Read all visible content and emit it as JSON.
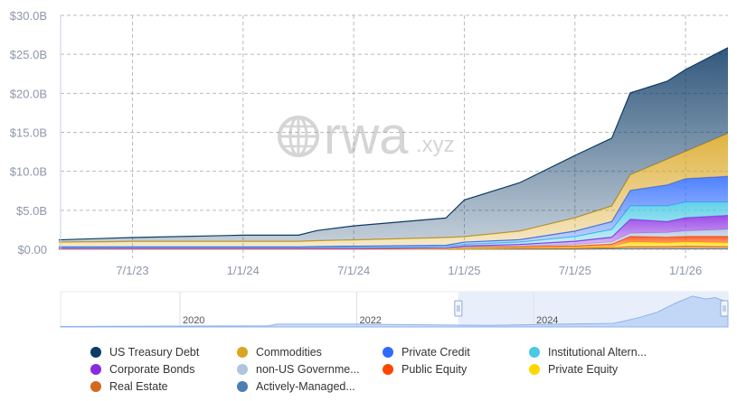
{
  "watermark": "rwa.xyz",
  "chart_data": {
    "type": "area",
    "stacked": true,
    "title": "",
    "xlabel": "",
    "ylabel": "",
    "ylim": [
      0,
      30
    ],
    "y_unit": "B USD",
    "yticks": [
      "$0.00",
      "$5.0B",
      "$10.0B",
      "$15.0B",
      "$20.0B",
      "$25.0B",
      "$30.0B"
    ],
    "ytick_values": [
      0,
      5,
      10,
      15,
      20,
      25,
      30
    ],
    "xticks": [
      "7/1/23",
      "1/1/24",
      "7/1/24",
      "1/1/25",
      "7/1/25",
      "1/1/26"
    ],
    "xtick_values": [
      0,
      6,
      12,
      18,
      24,
      30
    ],
    "x_unit": "months since 2023-07-01",
    "xlim": [
      -3.9,
      32.3
    ],
    "grid": true,
    "legend_placement": "bottom",
    "x": [
      -4,
      0,
      6,
      9,
      10,
      12,
      17,
      18,
      21,
      24,
      26,
      27,
      29,
      30,
      32.3
    ],
    "series": [
      {
        "name": "Actively-Managed...",
        "color": "#4a7fb0",
        "values": [
          0.01,
          0.01,
          0.01,
          0.01,
          0.01,
          0.01,
          0.01,
          0.02,
          0.03,
          0.03,
          0.05,
          0.05,
          0.05,
          0.05,
          0.05
        ]
      },
      {
        "name": "Real Estate",
        "color": "#d2691e",
        "values": [
          0.02,
          0.02,
          0.02,
          0.02,
          0.02,
          0.02,
          0.03,
          0.05,
          0.08,
          0.1,
          0.15,
          0.3,
          0.3,
          0.35,
          0.3
        ]
      },
      {
        "name": "Private Equity",
        "color": "#ffd700",
        "values": [
          0.01,
          0.01,
          0.01,
          0.01,
          0.01,
          0.01,
          0.02,
          0.05,
          0.07,
          0.1,
          0.15,
          0.6,
          0.5,
          0.55,
          0.5
        ]
      },
      {
        "name": "Public Equity",
        "color": "#ff4500",
        "values": [
          0.02,
          0.02,
          0.02,
          0.02,
          0.02,
          0.02,
          0.05,
          0.15,
          0.15,
          0.2,
          0.3,
          0.7,
          0.7,
          0.7,
          0.8
        ]
      },
      {
        "name": "non-US Governme...",
        "color": "#b0c4de",
        "values": [
          0.03,
          0.03,
          0.03,
          0.03,
          0.04,
          0.04,
          0.05,
          0.05,
          0.1,
          0.2,
          0.3,
          0.4,
          0.6,
          0.7,
          0.9
        ]
      },
      {
        "name": "Corporate Bonds",
        "color": "#8a2be2",
        "values": [
          0.02,
          0.02,
          0.02,
          0.02,
          0.02,
          0.02,
          0.05,
          0.1,
          0.2,
          0.4,
          0.6,
          1.8,
          1.4,
          1.7,
          1.8
        ]
      },
      {
        "name": "Institutional Altern...",
        "color": "#48cae4",
        "values": [
          0.15,
          0.15,
          0.15,
          0.15,
          0.18,
          0.18,
          0.2,
          0.2,
          0.3,
          0.6,
          1.0,
          1.7,
          2.0,
          2.0,
          1.7
        ]
      },
      {
        "name": "Private Credit",
        "color": "#2f6bff",
        "values": [
          0.05,
          0.05,
          0.05,
          0.05,
          0.05,
          0.1,
          0.1,
          0.3,
          0.3,
          0.7,
          1.0,
          2.0,
          2.7,
          3.0,
          3.3
        ]
      },
      {
        "name": "Commodities",
        "color": "#daa520",
        "values": [
          0.6,
          0.7,
          0.7,
          0.7,
          0.75,
          0.8,
          1.0,
          0.7,
          1.1,
          1.7,
          2.0,
          2.0,
          3.3,
          3.5,
          5.5
        ]
      },
      {
        "name": "US Treasury Debt",
        "color": "#0d3b66",
        "values": [
          0.3,
          0.5,
          0.8,
          0.8,
          1.3,
          1.8,
          2.5,
          4.7,
          6.2,
          8.0,
          8.7,
          10.5,
          10.0,
          10.5,
          11.0
        ]
      }
    ],
    "navigator": {
      "year_labels": [
        "2020",
        "2022",
        "2024"
      ],
      "year_values": [
        2020,
        2022,
        2024
      ],
      "range": [
        2018.65,
        2026.2
      ],
      "selected": [
        2023.15,
        2026.2
      ]
    }
  },
  "legend": [
    {
      "label": "US Treasury Debt",
      "color": "#0d3b66"
    },
    {
      "label": "Commodities",
      "color": "#daa520"
    },
    {
      "label": "Private Credit",
      "color": "#2f6bff"
    },
    {
      "label": "Institutional Altern...",
      "color": "#48cae4"
    },
    {
      "label": "Corporate Bonds",
      "color": "#8a2be2"
    },
    {
      "label": "non-US Governme...",
      "color": "#b0c4de"
    },
    {
      "label": "Public Equity",
      "color": "#ff4500"
    },
    {
      "label": "Private Equity",
      "color": "#ffd700"
    },
    {
      "label": "Real Estate",
      "color": "#d2691e"
    },
    {
      "label": "Actively-Managed...",
      "color": "#4a7fb0"
    }
  ]
}
